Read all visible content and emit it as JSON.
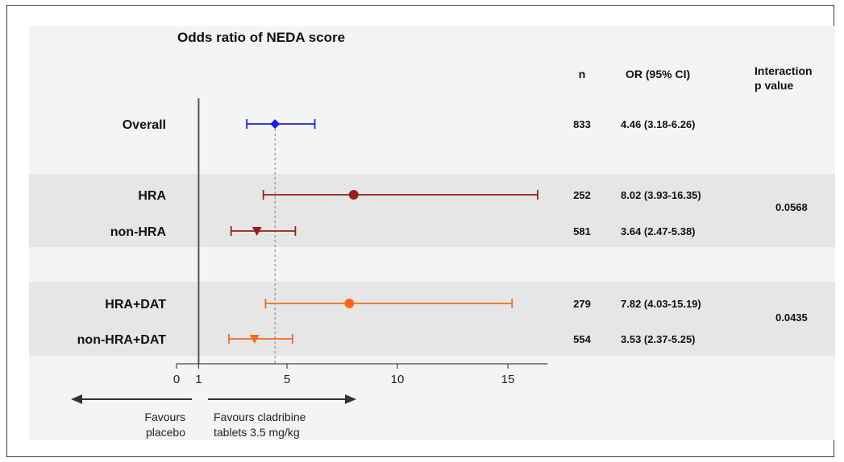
{
  "chart_data": {
    "type": "forest",
    "title": "Odds ratio of NEDA score",
    "columns": {
      "n": "n",
      "or": "OR (95% CI)",
      "interaction_line1": "Interaction",
      "interaction_line2": "p value"
    },
    "x_ticks": [
      "0",
      "1",
      "5",
      "10",
      "15"
    ],
    "x_tick_values": [
      0,
      1,
      5,
      10,
      15
    ],
    "xlim": [
      0,
      17
    ],
    "reference_line": 1,
    "overall_line": 4.46,
    "rows": [
      {
        "label": "Overall",
        "or": 4.46,
        "lo": 3.18,
        "hi": 6.26,
        "n": "833",
        "ci_text": "4.46 (3.18-6.26)",
        "marker": "diamond",
        "color": "#1f1fe0"
      },
      {
        "label": "HRA",
        "or": 8.02,
        "lo": 3.93,
        "hi": 16.35,
        "n": "252",
        "ci_text": "8.02 (3.93-16.35)",
        "marker": "circle",
        "color": "#9b1c1c"
      },
      {
        "label": "non-HRA",
        "or": 3.64,
        "lo": 2.47,
        "hi": 5.38,
        "n": "581",
        "ci_text": "3.64 (2.47-5.38)",
        "marker": "triangle",
        "color": "#9b1c1c"
      },
      {
        "label": "HRA+DAT",
        "or": 7.82,
        "lo": 4.03,
        "hi": 15.19,
        "n": "279",
        "ci_text": "7.82 (4.03-15.19)",
        "marker": "circle",
        "color": "#f26b1d"
      },
      {
        "label": "non-HRA+DAT",
        "or": 3.53,
        "lo": 2.37,
        "hi": 5.25,
        "n": "554",
        "ci_text": "3.53 (2.37-5.25)",
        "marker": "triangle",
        "color": "#f26b1d"
      }
    ],
    "interaction_p": [
      "0.0568",
      "0.0435"
    ],
    "favours_left": [
      "Favours",
      "placebo"
    ],
    "favours_right": [
      "Favours cladribine",
      "tablets 3.5 mg/kg"
    ]
  }
}
